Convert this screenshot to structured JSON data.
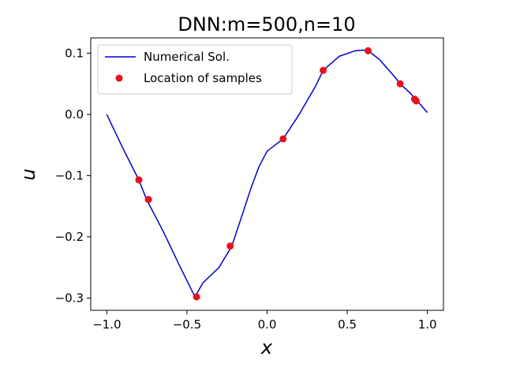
{
  "chart_data": {
    "type": "line",
    "title": "DNN:m=500,n=10",
    "xlabel": "x",
    "ylabel": "u",
    "xlim": [
      -1.1,
      1.1
    ],
    "ylim": [
      -0.32,
      0.125
    ],
    "xticks": [
      -1.0,
      -0.5,
      0.0,
      0.5,
      1.0
    ],
    "xtick_labels": [
      "−1.0",
      "−0.5",
      "0.0",
      "0.5",
      "1.0"
    ],
    "yticks": [
      -0.3,
      -0.2,
      -0.1,
      0.0,
      0.1
    ],
    "ytick_labels": [
      "−0.3",
      "−0.2",
      "−0.1",
      "0.0",
      "0.1"
    ],
    "grid": false,
    "legend": {
      "placement": "upper-left",
      "entries": [
        {
          "label": "Numerical Sol.",
          "marker": "line",
          "color": "#0000cc"
        },
        {
          "label": "Location of samples",
          "marker": "dot",
          "color": "#e8121d"
        }
      ]
    },
    "series": [
      {
        "name": "Numerical Sol.",
        "kind": "line",
        "color": "#0000cc",
        "x": [
          -1.0,
          -0.9,
          -0.8,
          -0.75,
          -0.65,
          -0.55,
          -0.45,
          -0.4,
          -0.3,
          -0.22,
          -0.15,
          -0.1,
          -0.05,
          0.0,
          0.05,
          0.1,
          0.2,
          0.3,
          0.35,
          0.45,
          0.55,
          0.6,
          0.63,
          0.7,
          0.8,
          0.83,
          0.9,
          0.92,
          0.95,
          1.0
        ],
        "y": [
          0.0,
          -0.055,
          -0.107,
          -0.14,
          -0.19,
          -0.245,
          -0.298,
          -0.275,
          -0.25,
          -0.215,
          -0.16,
          -0.12,
          -0.085,
          -0.06,
          -0.05,
          -0.04,
          0.0,
          0.045,
          0.072,
          0.095,
          0.104,
          0.105,
          0.104,
          0.09,
          0.06,
          0.05,
          0.033,
          0.025,
          0.018,
          0.003
        ]
      },
      {
        "name": "Location of samples",
        "kind": "scatter",
        "color": "#e8121d",
        "x": [
          -0.8,
          -0.74,
          -0.44,
          -0.23,
          0.1,
          0.35,
          0.63,
          0.83,
          0.92,
          0.93
        ],
        "y": [
          -0.107,
          -0.139,
          -0.298,
          -0.215,
          -0.04,
          0.072,
          0.104,
          0.05,
          0.025,
          0.022
        ]
      }
    ]
  }
}
